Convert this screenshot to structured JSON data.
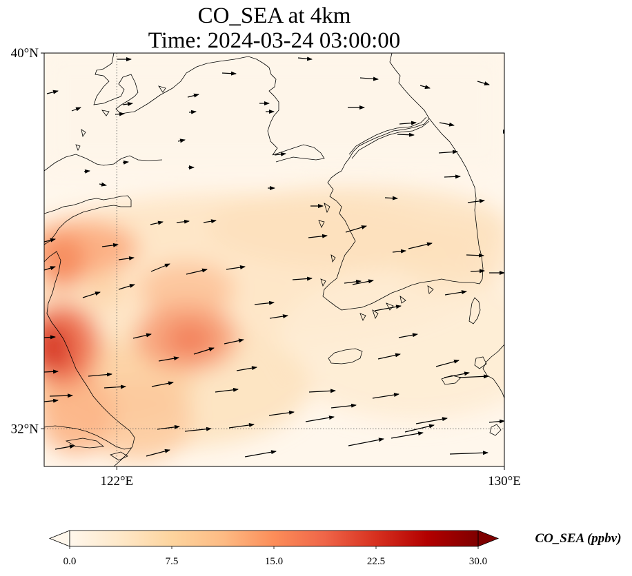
{
  "title": {
    "line1": "CO_SEA at 4km",
    "line2": "Time: 2024-03-24 03:00:00"
  },
  "map": {
    "lon_range": [
      120.5,
      130
    ],
    "lat_range": [
      31.2,
      40
    ],
    "lon_ticks": [
      {
        "lon": 122,
        "label": "122°E",
        "gridline": true
      },
      {
        "lon": 130,
        "label": "130°E",
        "gridline": false
      }
    ],
    "lat_ticks": [
      {
        "lat": 40,
        "label": "40°N",
        "gridline": false
      },
      {
        "lat": 32,
        "label": "32°N",
        "gridline": true
      }
    ],
    "field_colormap": "OrRd",
    "wind_arrow_color": "#000000"
  },
  "colorbar": {
    "label": "CO_SEA (ppbv)",
    "min": 0,
    "max": 30,
    "ticks": [
      "0.0",
      "7.5",
      "15.0",
      "22.5",
      "30.0"
    ],
    "extend": "both",
    "colors": [
      "#fff7ec",
      "#fee8c8",
      "#fdd49e",
      "#fdbb84",
      "#fc8d59",
      "#ef6548",
      "#d7301f",
      "#b30000",
      "#7f0000"
    ]
  }
}
